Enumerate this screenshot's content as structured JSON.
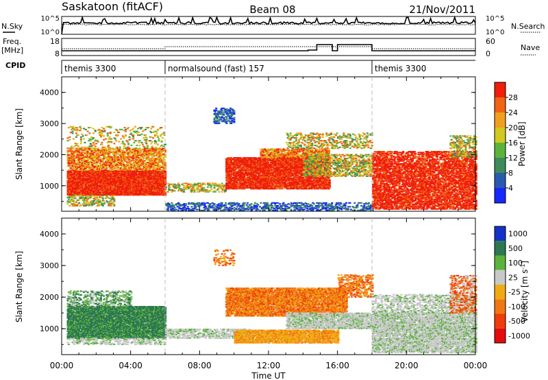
{
  "header": {
    "title": "Saskatoon (fitACF)",
    "beam": "Beam 08",
    "date": "21/Nov/2011"
  },
  "top_panels": {
    "nsky_label": "N.Sky",
    "nsearch_label": "N.Search",
    "nsky_ticks": [
      "10^5",
      "10^0"
    ],
    "nsearch_ticks": [
      "10^5",
      "10^0"
    ],
    "freq_label": "Freq.",
    "freq_unit": "[MHz]",
    "freq_ticks": [
      "18",
      "8"
    ],
    "nave_label": "Nave",
    "nave_ticks": [
      "60",
      "0"
    ],
    "cpid_label": "CPID",
    "cpid_segments": [
      {
        "label": "themis 3300",
        "start_hour": 0,
        "end_hour": 6
      },
      {
        "label": "normalsound (fast) 157",
        "start_hour": 6,
        "end_hour": 18
      },
      {
        "label": "themis 3300",
        "start_hour": 18,
        "end_hour": 24
      }
    ]
  },
  "chart_data": [
    {
      "type": "heatmap",
      "title": "",
      "xlabel": "",
      "ylabel": "Slant Range [km]",
      "xlim": [
        0,
        24
      ],
      "ylim": [
        180,
        4500
      ],
      "y_ticks": [
        "1000",
        "2000",
        "3000",
        "4000"
      ],
      "colorbar": {
        "label": "Power [dB]",
        "ticks": [
          "4",
          "8",
          "12",
          "16",
          "20",
          "24",
          "28"
        ],
        "range": [
          0,
          30
        ],
        "colors": [
          "#1428ff",
          "#2a5ab0",
          "#3c8c5a",
          "#5ab43c",
          "#d2c81e",
          "#f0a01e",
          "#f06414",
          "#f01e0a"
        ]
      },
      "dominant_echo_regions": [
        {
          "start_hour": 0.3,
          "end_hour": 6.0,
          "range_km": [
            600,
            1800
          ],
          "level": "28"
        },
        {
          "start_hour": 9.5,
          "end_hour": 16.0,
          "range_km": [
            800,
            2100
          ],
          "level": "28"
        },
        {
          "start_hour": 18.0,
          "end_hour": 24.0,
          "range_km": [
            200,
            2100
          ],
          "level": "28"
        },
        {
          "start_hour": 8.8,
          "end_hour": 10.0,
          "range_km": [
            3000,
            3500
          ],
          "level": "4-8"
        }
      ]
    },
    {
      "type": "heatmap",
      "title": "",
      "xlabel": "Time UT",
      "ylabel": "Slant Range [km]",
      "xlim": [
        0,
        24
      ],
      "ylim": [
        180,
        4500
      ],
      "x_ticks": [
        "00:00",
        "04:00",
        "08:00",
        "12:00",
        "16:00",
        "20:00",
        "00:00"
      ],
      "y_ticks": [
        "1000",
        "2000",
        "3000",
        "4000"
      ],
      "colorbar": {
        "label": "Velocity [m s^-1]",
        "ticks": [
          "1000",
          "500",
          "100",
          "25",
          "-25",
          "-100",
          "-500",
          "-1000"
        ],
        "colors": [
          "#1432c8",
          "#2d7850",
          "#5ab43c",
          "#c8c8c8",
          "#f0aa14",
          "#f07814",
          "#f03c0a",
          "#e60a0a"
        ]
      },
      "dominant_echo_regions": [
        {
          "start_hour": 0.3,
          "end_hour": 6.0,
          "range_km": [
            700,
            1700
          ],
          "level": "100 to 500"
        },
        {
          "start_hour": 9.5,
          "end_hour": 16.5,
          "range_km": [
            1400,
            2300
          ],
          "level": "-100 to -500"
        },
        {
          "start_hour": 10.0,
          "end_hour": 16.0,
          "range_km": [
            600,
            1000
          ],
          "level": "-25 to -100"
        },
        {
          "start_hour": 16.0,
          "end_hour": 24.0,
          "range_km": [
            200,
            1500
          ],
          "level": "-25 to 25"
        }
      ]
    }
  ]
}
